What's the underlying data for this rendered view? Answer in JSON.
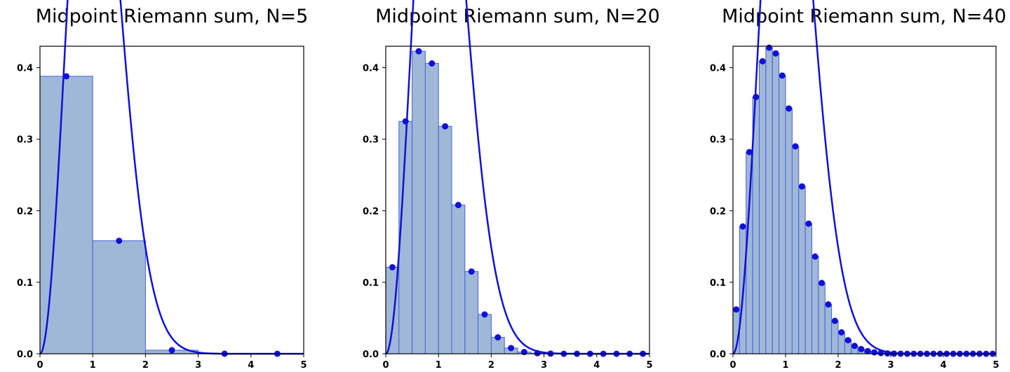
{
  "chart_data": [
    {
      "type": "bar",
      "title": "Midpoint Riemann sum, N=5",
      "xlabel": "",
      "ylabel": "",
      "xlim": [
        0,
        5
      ],
      "ylim": [
        0,
        0.43
      ],
      "xticks": [
        "0",
        "1",
        "2",
        "3",
        "4",
        "5"
      ],
      "yticks": [
        "0.0",
        "0.1",
        "0.2",
        "0.3",
        "0.4"
      ],
      "N": 5,
      "grid": false,
      "legend": "none",
      "bar_color": "#9fb8d8",
      "bar_edge": "#4a5fd6",
      "line_color": "#1010d8",
      "midpoints": [
        0.5,
        1.5,
        2.5,
        3.5,
        4.5
      ],
      "values": [
        0.388,
        0.158,
        0.005,
        0.0001,
        0.0
      ]
    },
    {
      "type": "bar",
      "title": "Midpoint Riemann sum, N=20",
      "xlabel": "",
      "ylabel": "",
      "xlim": [
        0,
        5
      ],
      "ylim": [
        0,
        0.43
      ],
      "xticks": [
        "0",
        "1",
        "2",
        "3",
        "4",
        "5"
      ],
      "yticks": [
        "0.0",
        "0.1",
        "0.2",
        "0.3",
        "0.4"
      ],
      "N": 20,
      "grid": false,
      "legend": "none",
      "bar_color": "#9fb8d8",
      "bar_edge": "#4a5fd6",
      "line_color": "#1010d8",
      "midpoints": [
        0.125,
        0.375,
        0.625,
        0.875,
        1.125,
        1.375,
        1.625,
        1.875,
        2.125,
        2.375,
        2.625,
        2.875,
        3.125,
        3.375,
        3.625,
        3.875,
        4.125,
        4.375,
        4.625,
        4.875
      ],
      "values": [
        0.121,
        0.325,
        0.423,
        0.406,
        0.318,
        0.208,
        0.115,
        0.055,
        0.023,
        0.008,
        0.0025,
        0.0008,
        0.0002,
        0.0,
        0.0,
        0.0,
        0.0,
        0.0,
        0.0,
        0.0
      ]
    },
    {
      "type": "bar",
      "title": "Midpoint Riemann sum, N=40",
      "xlabel": "",
      "ylabel": "",
      "xlim": [
        0,
        5
      ],
      "ylim": [
        0,
        0.43
      ],
      "xticks": [
        "0",
        "1",
        "2",
        "3",
        "4",
        "5"
      ],
      "yticks": [
        "0.0",
        "0.1",
        "0.2",
        "0.3",
        "0.4"
      ],
      "N": 40,
      "grid": false,
      "legend": "none",
      "bar_color": "#9fb8d8",
      "bar_edge": "#4a5fd6",
      "line_color": "#1010d8",
      "midpoints": [
        0.0625,
        0.1875,
        0.3125,
        0.4375,
        0.5625,
        0.6875,
        0.8125,
        0.9375,
        1.0625,
        1.1875,
        1.3125,
        1.4375,
        1.5625,
        1.6875,
        1.8125,
        1.9375,
        2.0625,
        2.1875,
        2.3125,
        2.4375,
        2.5625,
        2.6875,
        2.8125,
        2.9375,
        3.0625,
        3.1875,
        3.3125,
        3.4375,
        3.5625,
        3.6875,
        3.8125,
        3.9375,
        4.0625,
        4.1875,
        4.3125,
        4.4375,
        4.5625,
        4.6875,
        4.8125,
        4.9375
      ],
      "values": [
        0.062,
        0.178,
        0.282,
        0.359,
        0.409,
        0.428,
        0.42,
        0.389,
        0.343,
        0.29,
        0.234,
        0.182,
        0.136,
        0.099,
        0.069,
        0.046,
        0.03,
        0.019,
        0.011,
        0.0066,
        0.0037,
        0.002,
        0.001,
        0.0005,
        0.0002,
        0.0001,
        0.0,
        0.0,
        0.0,
        0.0,
        0.0,
        0.0,
        0.0,
        0.0,
        0.0,
        0.0,
        0.0,
        0.0,
        0.0,
        0.0
      ]
    }
  ]
}
